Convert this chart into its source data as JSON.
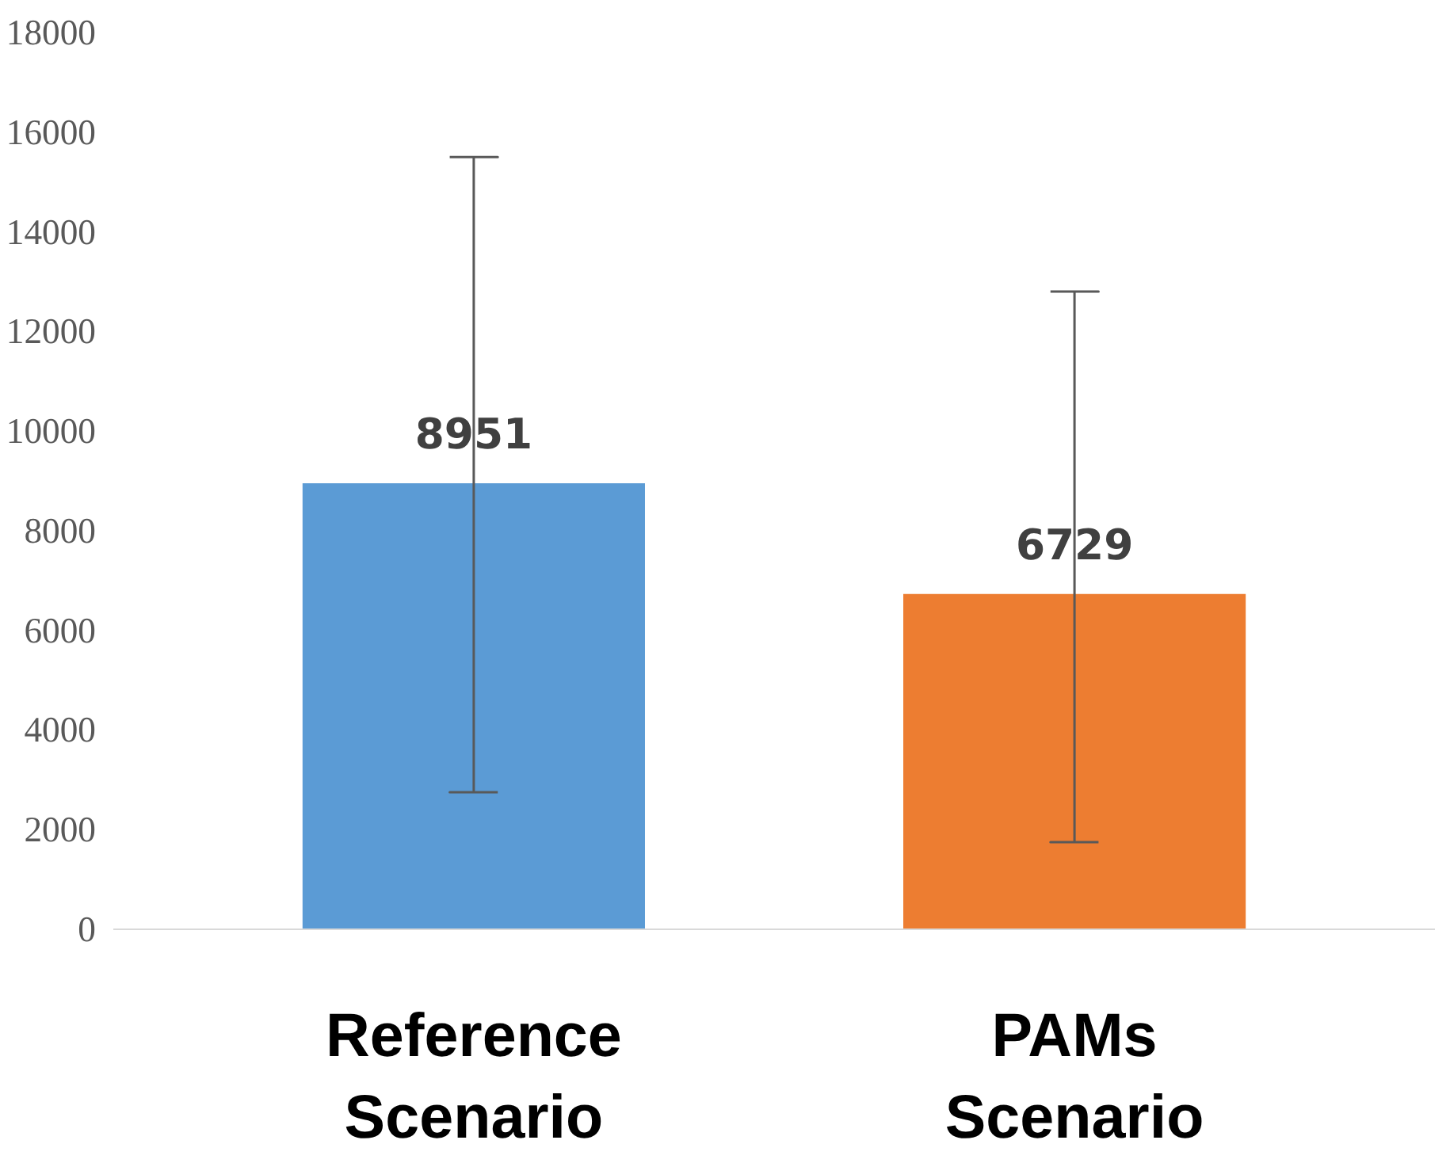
{
  "chart_data": {
    "type": "bar",
    "categories": [
      "Reference\nScenario",
      "PAMs\nScenario"
    ],
    "values": [
      8951,
      6729
    ],
    "colors": [
      "#5b9bd5",
      "#ed7d31"
    ],
    "errors": [
      [
        2750,
        15500
      ],
      [
        1750,
        12800
      ]
    ],
    "data_labels": true,
    "ylim": [
      0,
      18000
    ],
    "yticks": [
      0,
      2000,
      4000,
      6000,
      8000,
      10000,
      12000,
      14000,
      16000,
      18000
    ],
    "grid": false,
    "legend": false
  }
}
